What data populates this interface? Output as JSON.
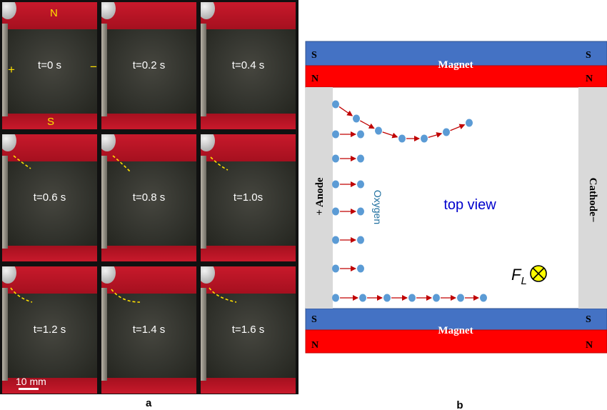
{
  "panel_a": {
    "frames": [
      {
        "time": "t=0 s"
      },
      {
        "time": "t=0.2 s"
      },
      {
        "time": "t=0.4 s"
      },
      {
        "time": "t=0.6 s"
      },
      {
        "time": "t=0.8 s"
      },
      {
        "time": "t=1.0s"
      },
      {
        "time": "t=1.2 s"
      },
      {
        "time": "t=1.4 s"
      },
      {
        "time": "t=1.6 s"
      }
    ],
    "pole_north": "N",
    "pole_south": "S",
    "electrode_plus": "+",
    "electrode_minus": "−",
    "scale_label": "10 mm",
    "label": "a"
  },
  "panel_b": {
    "label": "b",
    "magnet_label": "Magnet",
    "pole_s": "S",
    "pole_n": "N",
    "anode_label": "+ Anode",
    "cathode_label": "Cathode−",
    "oxygen_label": "Oxygen",
    "view_label": "top view",
    "force_symbol": "F",
    "force_subscript": "L",
    "colors": {
      "magnet_blue": "#4472c4",
      "magnet_red": "#ff0000",
      "electrode": "#d9d9d9",
      "bubble": "#5b9bd5",
      "arrow": "#c00000",
      "view_text": "#0000cc",
      "oxygen_text": "#1f6f9f"
    }
  }
}
